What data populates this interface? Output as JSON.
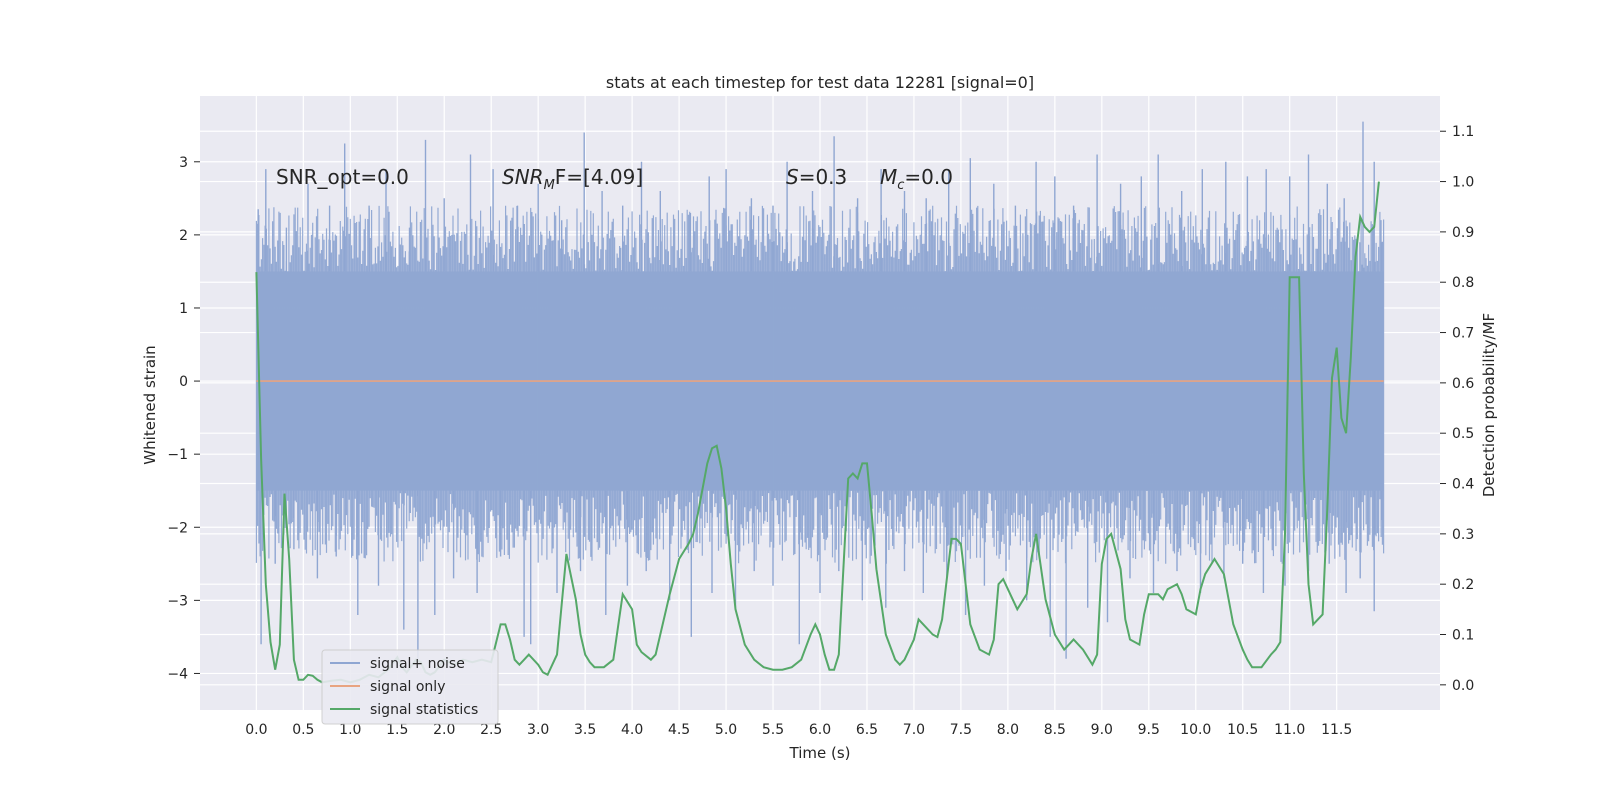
{
  "chart_data": {
    "type": "line",
    "title": "stats at each timestep for test data 12281 [signal=0]",
    "xlabel": "Time (s)",
    "ylabel": "Whitened strain",
    "y2label": "Detection probability/MF",
    "xlim": [
      -0.6,
      12.6
    ],
    "ylim": [
      -4.5,
      3.9
    ],
    "y2lim": [
      -0.05,
      1.17
    ],
    "xticks": [
      0.0,
      0.5,
      1.0,
      1.5,
      2.0,
      2.5,
      3.0,
      3.5,
      4.0,
      4.5,
      5.0,
      5.5,
      6.0,
      6.5,
      7.0,
      7.5,
      8.0,
      8.5,
      9.0,
      9.5,
      10.0,
      10.5,
      11.0,
      11.5
    ],
    "xtick_labels": [
      "0.0",
      "0.5",
      "1.0",
      "1.5",
      "2.0",
      "2.5",
      "3.0",
      "3.5",
      "4.0",
      "4.5",
      "5.0",
      "5.5",
      "6.0",
      "6.5",
      "7.0",
      "7.5",
      "8.0",
      "8.5",
      "9.0",
      "9.5",
      "10.0",
      "10.5",
      "11.0",
      "11.5"
    ],
    "yticks": [
      3,
      2,
      1,
      0,
      -1,
      -2,
      -3,
      -4
    ],
    "ytick_labels": [
      "3",
      "2",
      "1",
      "0",
      "−1",
      "−2",
      "−3",
      "−4"
    ],
    "y2ticks": [
      1.1,
      1.0,
      0.9,
      0.8,
      0.7,
      0.6,
      0.5,
      0.4,
      0.3,
      0.2,
      0.1,
      0.0
    ],
    "y2tick_labels": [
      "1.1",
      "1.0",
      "0.9",
      "0.8",
      "0.7",
      "0.6",
      "0.5",
      "0.4",
      "0.3",
      "0.2",
      "0.1",
      "0.0"
    ],
    "grid": true,
    "legend_position": "lower-left",
    "series": [
      {
        "name": "signal+ noise",
        "color": "#8fa6d2",
        "axis": "left",
        "x_range": [
          0.0,
          12.0
        ],
        "envelope": {
          "upper_typical": 1.5,
          "lower_typical": -1.5,
          "upper_peaks": [
            [
              0.02,
              2.35
            ],
            [
              0.1,
              2.9
            ],
            [
              0.32,
              2.1
            ],
            [
              0.55,
              2.7
            ],
            [
              0.78,
              2.4
            ],
            [
              0.94,
              3.25
            ],
            [
              1.2,
              2.4
            ],
            [
              1.38,
              2.9
            ],
            [
              1.63,
              2.1
            ],
            [
              1.8,
              3.3
            ],
            [
              2.0,
              2.5
            ],
            [
              2.28,
              3.1
            ],
            [
              2.52,
              2.9
            ],
            [
              2.78,
              2.4
            ],
            [
              3.0,
              2.7
            ],
            [
              3.25,
              2.2
            ],
            [
              3.49,
              3.4
            ],
            [
              3.68,
              2.6
            ],
            [
              3.9,
              2.4
            ],
            [
              4.1,
              3.0
            ],
            [
              4.3,
              2.6
            ],
            [
              4.62,
              2.3
            ],
            [
              4.82,
              2.8
            ],
            [
              5.0,
              2.9
            ],
            [
              5.27,
              2.5
            ],
            [
              5.5,
              2.4
            ],
            [
              5.65,
              3.0
            ],
            [
              5.92,
              2.6
            ],
            [
              6.15,
              3.35
            ],
            [
              6.4,
              2.5
            ],
            [
              6.65,
              2.9
            ],
            [
              6.9,
              2.6
            ],
            [
              7.13,
              2.5
            ],
            [
              7.37,
              2.9
            ],
            [
              7.6,
              3.05
            ],
            [
              7.85,
              2.7
            ],
            [
              8.08,
              2.4
            ],
            [
              8.3,
              3.0
            ],
            [
              8.5,
              2.8
            ],
            [
              8.7,
              2.4
            ],
            [
              8.95,
              3.1
            ],
            [
              9.2,
              2.7
            ],
            [
              9.42,
              2.8
            ],
            [
              9.6,
              3.1
            ],
            [
              9.85,
              2.6
            ],
            [
              10.07,
              2.9
            ],
            [
              10.32,
              3.0
            ],
            [
              10.55,
              2.8
            ],
            [
              10.75,
              2.9
            ],
            [
              11.0,
              2.8
            ],
            [
              11.2,
              3.1
            ],
            [
              11.4,
              2.7
            ],
            [
              11.58,
              2.5
            ],
            [
              11.78,
              3.55
            ],
            [
              11.9,
              3.0
            ],
            [
              11.98,
              1.9
            ]
          ],
          "lower_peaks": [
            [
              0.05,
              -3.6
            ],
            [
              0.2,
              -2.5
            ],
            [
              0.4,
              -2.3
            ],
            [
              0.65,
              -2.7
            ],
            [
              0.85,
              -2.4
            ],
            [
              1.08,
              -3.2
            ],
            [
              1.3,
              -2.8
            ],
            [
              1.57,
              -3.4
            ],
            [
              1.72,
              -3.8
            ],
            [
              1.9,
              -3.2
            ],
            [
              2.1,
              -2.7
            ],
            [
              2.35,
              -2.9
            ],
            [
              2.6,
              -2.4
            ],
            [
              2.85,
              -3.5
            ],
            [
              2.92,
              -3.6
            ],
            [
              3.2,
              -2.9
            ],
            [
              3.45,
              -2.6
            ],
            [
              3.72,
              -3.2
            ],
            [
              3.95,
              -2.8
            ],
            [
              4.15,
              -2.6
            ],
            [
              4.4,
              -3.0
            ],
            [
              4.63,
              -3.5
            ],
            [
              4.85,
              -2.9
            ],
            [
              5.1,
              -3.1
            ],
            [
              5.3,
              -2.6
            ],
            [
              5.5,
              -2.8
            ],
            [
              5.78,
              -3.6
            ],
            [
              6.0,
              -2.9
            ],
            [
              6.2,
              -2.6
            ],
            [
              6.45,
              -3.0
            ],
            [
              6.7,
              -3.1
            ],
            [
              6.9,
              -2.6
            ],
            [
              7.1,
              -2.9
            ],
            [
              7.35,
              -2.7
            ],
            [
              7.55,
              -3.2
            ],
            [
              7.75,
              -2.8
            ],
            [
              7.98,
              -2.6
            ],
            [
              8.2,
              -3.0
            ],
            [
              8.45,
              -3.5
            ],
            [
              8.62,
              -3.8
            ],
            [
              8.85,
              -3.1
            ],
            [
              9.06,
              -3.3
            ],
            [
              9.3,
              -2.7
            ],
            [
              9.55,
              -2.9
            ],
            [
              9.8,
              -2.6
            ],
            [
              10.05,
              -2.9
            ],
            [
              10.3,
              -2.7
            ],
            [
              10.5,
              -2.5
            ],
            [
              10.72,
              -2.9
            ],
            [
              10.95,
              -2.8
            ],
            [
              11.2,
              -2.6
            ],
            [
              11.42,
              -2.5
            ],
            [
              11.6,
              -2.9
            ],
            [
              11.75,
              -2.7
            ],
            [
              11.9,
              -3.15
            ],
            [
              11.98,
              -1.9
            ]
          ]
        }
      },
      {
        "name": "signal only",
        "color": "#e8a481",
        "axis": "left",
        "x": [
          0.0,
          12.0
        ],
        "y": [
          0.0,
          0.0
        ]
      },
      {
        "name": "signal statistics",
        "color": "#55a868",
        "axis": "right",
        "x": [
          0.0,
          0.05,
          0.1,
          0.15,
          0.2,
          0.25,
          0.3,
          0.35,
          0.4,
          0.45,
          0.5,
          0.55,
          0.6,
          0.65,
          0.7,
          0.8,
          0.9,
          1.0,
          1.1,
          1.2,
          1.3,
          1.4,
          1.5,
          1.55,
          1.6,
          1.7,
          1.75,
          1.8,
          1.85,
          1.9,
          2.0,
          2.05,
          2.1,
          2.2,
          2.3,
          2.4,
          2.5,
          2.6,
          2.65,
          2.7,
          2.75,
          2.8,
          2.85,
          2.9,
          3.0,
          3.05,
          3.1,
          3.2,
          3.3,
          3.4,
          3.45,
          3.5,
          3.55,
          3.6,
          3.7,
          3.8,
          3.9,
          4.0,
          4.05,
          4.1,
          4.2,
          4.25,
          4.3,
          4.4,
          4.5,
          4.6,
          4.65,
          4.7,
          4.8,
          4.85,
          4.9,
          4.95,
          5.0,
          5.05,
          5.1,
          5.2,
          5.3,
          5.4,
          5.5,
          5.6,
          5.7,
          5.8,
          5.9,
          5.95,
          6.0,
          6.05,
          6.1,
          6.15,
          6.2,
          6.3,
          6.35,
          6.4,
          6.45,
          6.5,
          6.55,
          6.6,
          6.7,
          6.8,
          6.85,
          6.9,
          7.0,
          7.05,
          7.1,
          7.2,
          7.25,
          7.3,
          7.4,
          7.45,
          7.5,
          7.6,
          7.7,
          7.8,
          7.85,
          7.9,
          7.95,
          8.0,
          8.1,
          8.2,
          8.25,
          8.3,
          8.4,
          8.5,
          8.6,
          8.65,
          8.7,
          8.8,
          8.9,
          8.95,
          9.0,
          9.05,
          9.1,
          9.2,
          9.25,
          9.3,
          9.4,
          9.45,
          9.5,
          9.6,
          9.65,
          9.7,
          9.8,
          9.85,
          9.9,
          10.0,
          10.05,
          10.1,
          10.2,
          10.3,
          10.4,
          10.5,
          10.55,
          10.6,
          10.7,
          10.8,
          10.85,
          10.9,
          10.95,
          11.0,
          11.05,
          11.1,
          11.15,
          11.2,
          11.25,
          11.3,
          11.35,
          11.4,
          11.45,
          11.5,
          11.55,
          11.6,
          11.65,
          11.7,
          11.75,
          11.8,
          11.85,
          11.9,
          11.95
        ],
        "y": [
          0.82,
          0.45,
          0.2,
          0.085,
          0.03,
          0.08,
          0.38,
          0.25,
          0.05,
          0.01,
          0.01,
          0.02,
          0.018,
          0.01,
          0.005,
          0.008,
          0.01,
          0.005,
          0.01,
          0.02,
          0.015,
          0.03,
          0.055,
          0.035,
          0.025,
          0.05,
          0.045,
          0.025,
          0.02,
          0.025,
          0.05,
          0.045,
          0.04,
          0.05,
          0.045,
          0.05,
          0.045,
          0.12,
          0.12,
          0.09,
          0.05,
          0.04,
          0.05,
          0.06,
          0.04,
          0.025,
          0.02,
          0.06,
          0.26,
          0.17,
          0.1,
          0.06,
          0.045,
          0.035,
          0.035,
          0.05,
          0.18,
          0.15,
          0.08,
          0.065,
          0.05,
          0.06,
          0.1,
          0.18,
          0.25,
          0.28,
          0.3,
          0.34,
          0.44,
          0.47,
          0.475,
          0.43,
          0.35,
          0.24,
          0.15,
          0.08,
          0.05,
          0.035,
          0.03,
          0.03,
          0.035,
          0.05,
          0.1,
          0.12,
          0.1,
          0.06,
          0.03,
          0.03,
          0.06,
          0.41,
          0.42,
          0.41,
          0.44,
          0.44,
          0.34,
          0.23,
          0.1,
          0.05,
          0.04,
          0.05,
          0.09,
          0.13,
          0.12,
          0.1,
          0.095,
          0.13,
          0.29,
          0.29,
          0.28,
          0.12,
          0.07,
          0.06,
          0.09,
          0.2,
          0.21,
          0.19,
          0.15,
          0.18,
          0.25,
          0.3,
          0.17,
          0.1,
          0.07,
          0.08,
          0.09,
          0.07,
          0.04,
          0.06,
          0.24,
          0.29,
          0.3,
          0.23,
          0.13,
          0.09,
          0.08,
          0.14,
          0.18,
          0.18,
          0.17,
          0.19,
          0.2,
          0.18,
          0.15,
          0.14,
          0.19,
          0.22,
          0.25,
          0.22,
          0.12,
          0.07,
          0.05,
          0.035,
          0.035,
          0.06,
          0.07,
          0.085,
          0.3,
          0.81,
          0.81,
          0.81,
          0.42,
          0.2,
          0.12,
          0.13,
          0.14,
          0.35,
          0.61,
          0.67,
          0.53,
          0.5,
          0.65,
          0.85,
          0.93,
          0.91,
          0.9,
          0.91,
          1.0
        ]
      }
    ],
    "annotations": [
      {
        "text": "SNR_opt=0.0",
        "x": 0.2,
        "y": 2.85,
        "axis": "left"
      },
      {
        "text": "SNRMF=[4.09]",
        "x": 2.6,
        "y": 2.85,
        "axis": "left"
      },
      {
        "text": "S=0.3",
        "x": 5.6,
        "y": 2.85,
        "axis": "left"
      },
      {
        "text": "Mc=0.0",
        "x": 6.6,
        "y": 2.85,
        "axis": "left"
      }
    ]
  },
  "annotations_display": {
    "snr_opt": "SNR_opt=0.0",
    "snr_mf_prefix": "SNR",
    "snr_mf_sub": "M",
    "snr_mf_suffix": "F=[4.09]",
    "s_label": "S",
    "s_value": "=0.3",
    "mc_prefix": "M",
    "mc_sub": "c",
    "mc_value": "=0.0"
  },
  "colors": {
    "plot_background": "#eaeaf2",
    "grid": "#ffffff",
    "text": "#262626",
    "noise": "#8fa6d2",
    "signal": "#e8a481",
    "stats": "#55a868"
  }
}
